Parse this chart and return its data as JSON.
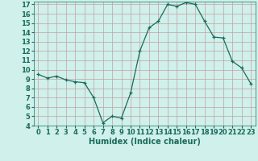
{
  "x": [
    0,
    1,
    2,
    3,
    4,
    5,
    6,
    7,
    8,
    9,
    10,
    11,
    12,
    13,
    14,
    15,
    16,
    17,
    18,
    19,
    20,
    21,
    22,
    23
  ],
  "y": [
    9.5,
    9.1,
    9.3,
    8.9,
    8.7,
    8.6,
    7.0,
    4.3,
    5.0,
    4.8,
    7.5,
    12.0,
    14.5,
    15.2,
    17.0,
    16.8,
    17.2,
    17.0,
    15.2,
    13.5,
    13.4,
    10.9,
    10.2,
    8.5
  ],
  "xlabel": "Humidex (Indice chaleur)",
  "ylim": [
    4,
    17.3
  ],
  "xlim": [
    -0.5,
    23.5
  ],
  "yticks": [
    4,
    5,
    6,
    7,
    8,
    9,
    10,
    11,
    12,
    13,
    14,
    15,
    16,
    17
  ],
  "xticks": [
    0,
    1,
    2,
    3,
    4,
    5,
    6,
    7,
    8,
    9,
    10,
    11,
    12,
    13,
    14,
    15,
    16,
    17,
    18,
    19,
    20,
    21,
    22,
    23
  ],
  "line_color": "#1a6b5a",
  "marker": "+",
  "bg_color": "#cff0eb",
  "grid_color": "#c4a0a0",
  "xlabel_fontsize": 7,
  "tick_fontsize": 6,
  "marker_size": 3.5,
  "linewidth": 0.9
}
